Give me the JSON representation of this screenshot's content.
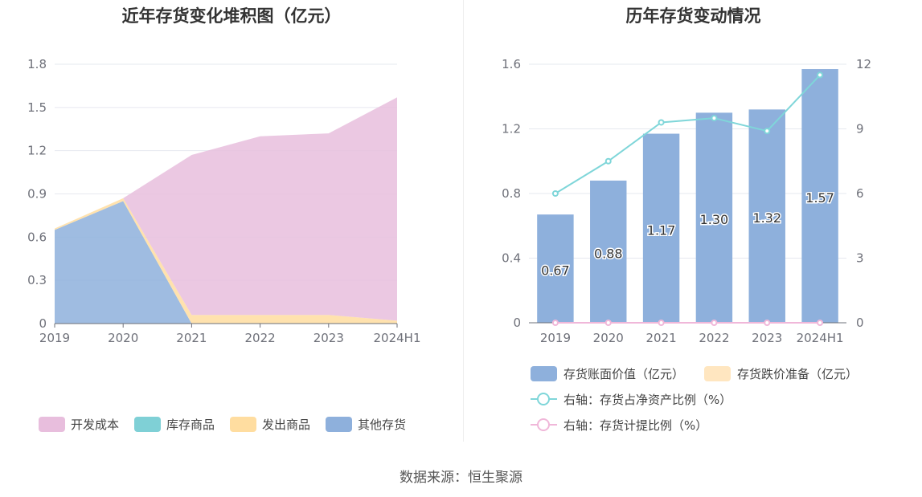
{
  "titles": {
    "left": "近年存货变化堆积图（亿元）",
    "right": "历年存货变动情况"
  },
  "source": "数据来源：恒生聚源",
  "colors": {
    "dev_cost": "#e8bedd",
    "stock_goods": "#7fd0d6",
    "shipped_goods": "#ffdda0",
    "other": "#8eb0dc",
    "bar": "#8eb0dc",
    "reserve": "#ffe6c0",
    "ratio_line": "#7fd6d9",
    "reserve_ratio_line": "#f0b7d9",
    "grid": "#e6e8ef",
    "axis": "#6e7079"
  },
  "chart_data": [
    {
      "type": "area",
      "title": "近年存货变化堆积图（亿元）",
      "categories": [
        "2019",
        "2020",
        "2021",
        "2022",
        "2023",
        "2024H1"
      ],
      "ylim": [
        0,
        1.8
      ],
      "yticks": [
        "0",
        "0.3",
        "0.6",
        "0.9",
        "1.2",
        "1.5",
        "1.8"
      ],
      "stacked": true,
      "series": [
        {
          "name": "其他存货",
          "values": [
            0.65,
            0.85,
            0.0,
            0.0,
            0.0,
            0.0
          ]
        },
        {
          "name": "发出商品",
          "values": [
            0.01,
            0.02,
            0.06,
            0.06,
            0.06,
            0.02
          ]
        },
        {
          "name": "库存商品",
          "values": [
            0.0,
            0.0,
            0.0,
            0.0,
            0.0,
            0.0
          ]
        },
        {
          "name": "开发成本",
          "values": [
            0.0,
            0.0,
            1.11,
            1.24,
            1.26,
            1.55
          ]
        }
      ],
      "legend": [
        "开发成本",
        "库存商品",
        "发出商品",
        "其他存货"
      ],
      "legend_position": "bottom"
    },
    {
      "type": "bar",
      "title": "历年存货变动情况",
      "categories": [
        "2019",
        "2020",
        "2021",
        "2022",
        "2023",
        "2024H1"
      ],
      "ylim": [
        0,
        1.6
      ],
      "yticks": [
        "0",
        "0.4",
        "0.8",
        "1.2",
        "1.6"
      ],
      "y2lim": [
        0,
        12
      ],
      "y2ticks": [
        "0",
        "3",
        "6",
        "9",
        "12"
      ],
      "series": [
        {
          "name": "存货账面价值（亿元）",
          "type": "bar",
          "values": [
            0.67,
            0.88,
            1.17,
            1.3,
            1.32,
            1.57
          ],
          "labels": [
            "0.67",
            "0.88",
            "1.17",
            "1.30",
            "1.32",
            "1.57"
          ]
        },
        {
          "name": "存货跌价准备（亿元）",
          "type": "bar",
          "values": [
            0,
            0,
            0,
            0,
            0,
            0
          ]
        },
        {
          "name": "右轴：存货占净资产比例（%）",
          "type": "line",
          "axis": "right",
          "values": [
            6.0,
            7.5,
            9.3,
            9.5,
            8.9,
            11.5
          ]
        },
        {
          "name": "右轴：存货计提比例（%）",
          "type": "line",
          "axis": "right",
          "values": [
            0,
            0,
            0,
            0,
            0,
            0
          ]
        }
      ],
      "legend_position": "bottom"
    }
  ]
}
